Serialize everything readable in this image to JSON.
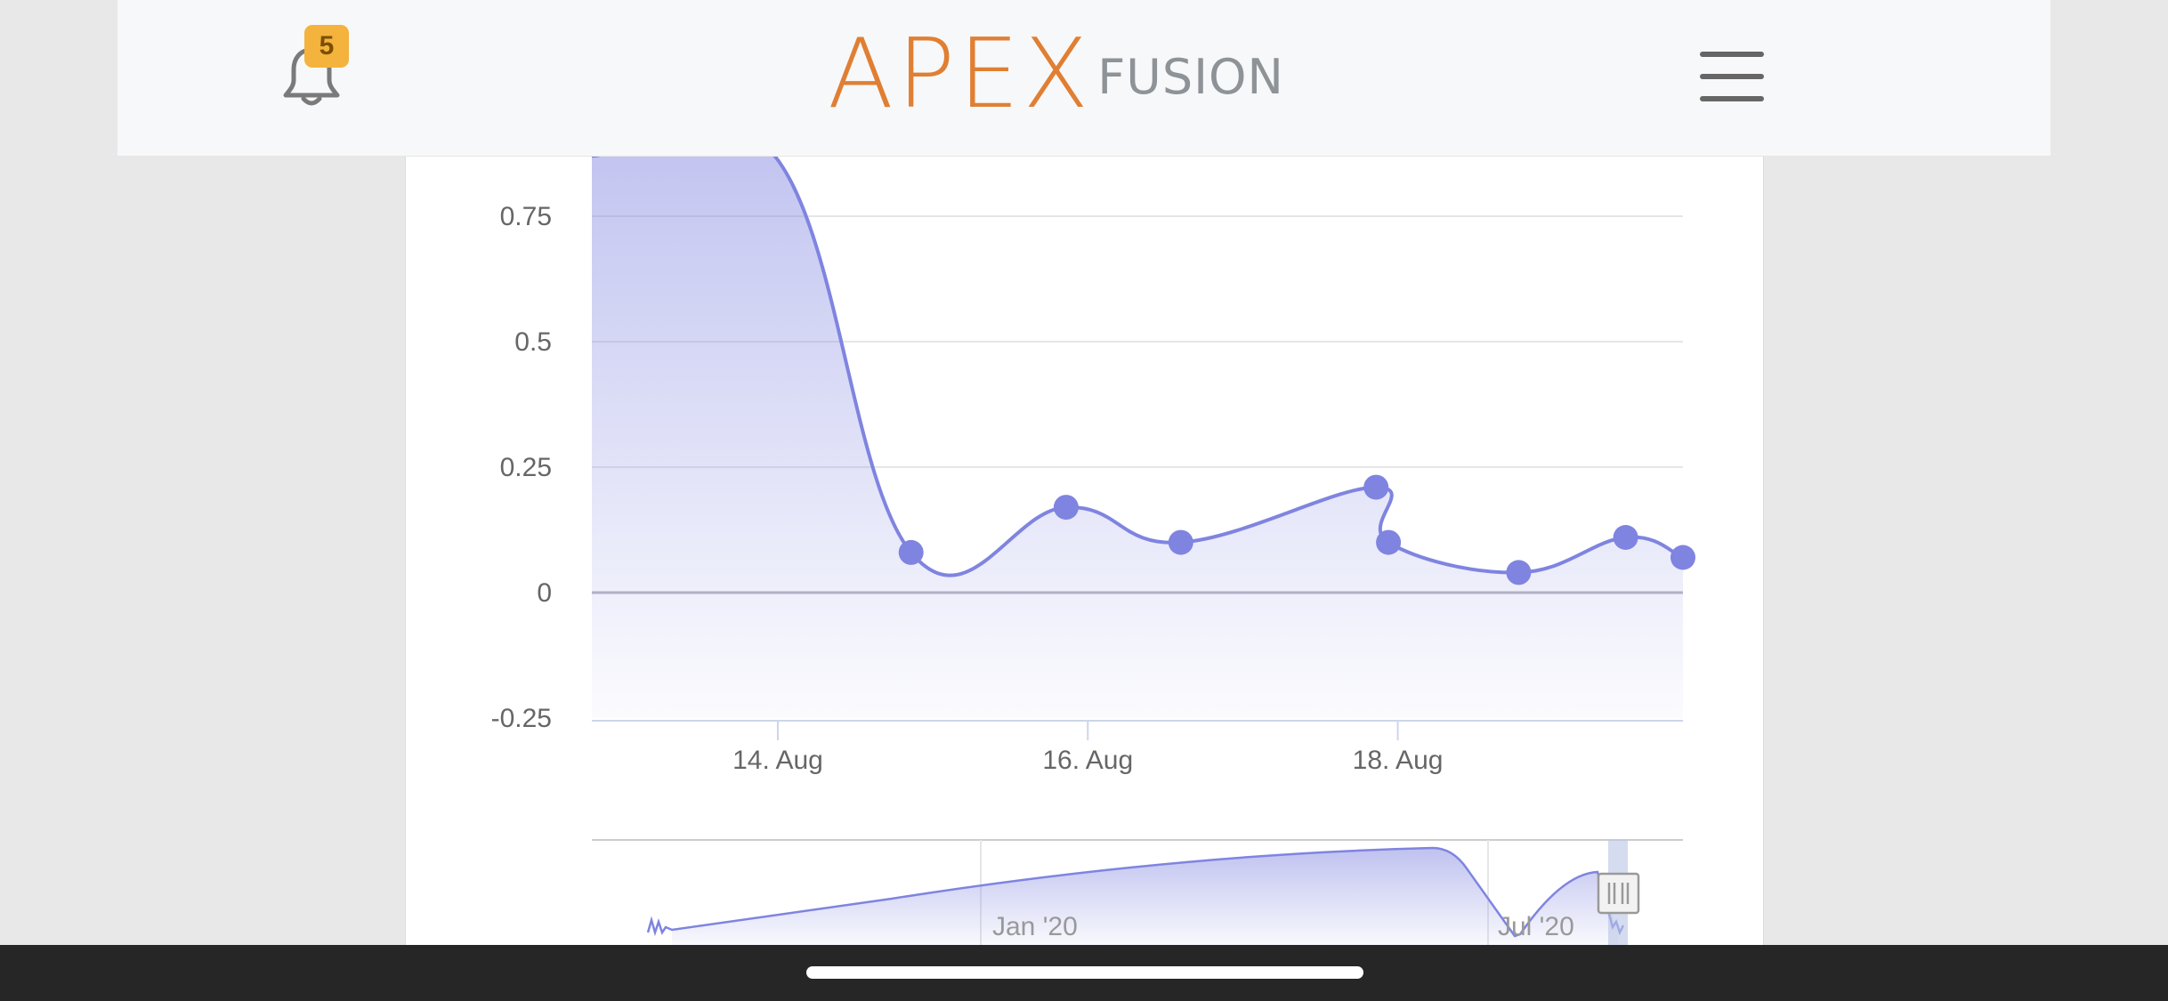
{
  "header": {
    "notification_count": "5",
    "logo_main": "APEX",
    "logo_sub": "FUSION",
    "accent_color": "#e07f33",
    "badge_color": "#f3b33d",
    "icons": [
      "bell-icon",
      "hamburger-menu-icon"
    ]
  },
  "chart_data": {
    "type": "area",
    "series_color": "#7f84e0",
    "grid": true,
    "ylim": [
      -0.25,
      0.87
    ],
    "yticks": [
      {
        "value": -0.25,
        "label": "-0.25"
      },
      {
        "value": 0,
        "label": "0"
      },
      {
        "value": 0.25,
        "label": "0.25"
      },
      {
        "value": 0.5,
        "label": "0.5"
      },
      {
        "value": 0.75,
        "label": "0.75"
      }
    ],
    "xlim_days_of_aug": [
      12.8,
      19.84
    ],
    "xticks": [
      {
        "day": 14,
        "label": "14. Aug"
      },
      {
        "day": 16,
        "label": "16. Aug"
      },
      {
        "day": 18,
        "label": "18. Aug"
      }
    ],
    "series": [
      {
        "values": [
          {
            "day": 12.8,
            "value": 0.87
          },
          {
            "day": 13.98,
            "value": 0.87
          },
          {
            "day": 14.86,
            "value": 0.08
          },
          {
            "day": 15.86,
            "value": 0.17
          },
          {
            "day": 16.6,
            "value": 0.1
          },
          {
            "day": 17.86,
            "value": 0.21
          },
          {
            "day": 17.94,
            "value": 0.1
          },
          {
            "day": 18.78,
            "value": 0.04
          },
          {
            "day": 19.47,
            "value": 0.11
          },
          {
            "day": 19.84,
            "value": 0.07
          }
        ]
      }
    ],
    "navigator": {
      "labels": [
        "Jan '20",
        "Jul '20"
      ]
    }
  }
}
